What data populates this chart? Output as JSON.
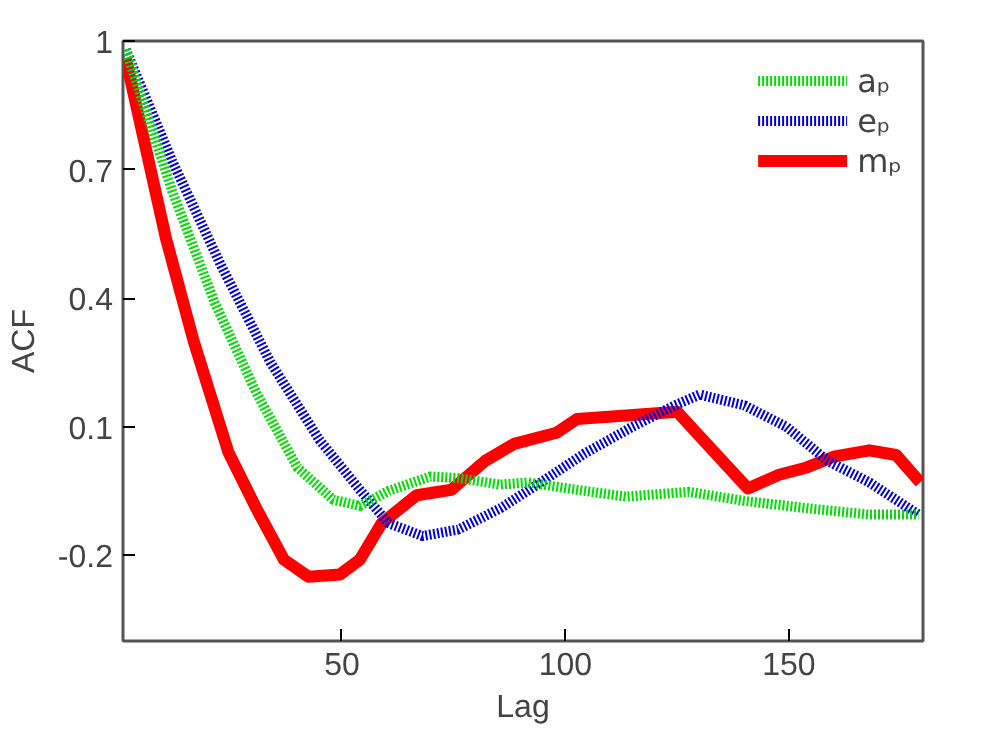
{
  "chart_data": {
    "type": "line",
    "xlabel": "Lag",
    "ylabel": "ACF",
    "xlim": [
      1,
      180
    ],
    "ylim": [
      -0.4,
      1
    ],
    "xticks": [
      50,
      100,
      150
    ],
    "yticks": [
      {
        "value": 1,
        "label": "1"
      },
      0.7,
      0.4,
      0.1,
      -0.2
    ],
    "grid": false,
    "legend": "top right",
    "marker": "none",
    "series": [
      {
        "name": "aₚ",
        "color": "#00e000",
        "line_style": "dotted",
        "x": [
          1.6,
          12,
          21.5,
          30.8,
          40,
          48,
          54,
          60.4,
          69.8,
          76,
          85.4,
          91.7,
          101,
          113.5,
          127.6,
          140,
          155.6,
          168,
          179
        ],
        "values": [
          0.98,
          0.65,
          0.39,
          0.18,
          0.005,
          -0.07,
          -0.085,
          -0.05,
          -0.016,
          -0.02,
          -0.035,
          -0.03,
          -0.045,
          -0.063,
          -0.052,
          -0.073,
          -0.092,
          -0.105,
          -0.105
        ]
      },
      {
        "name": "eₚ",
        "color": "#0000e0",
        "line_style": "dotted",
        "x": [
          1.6,
          12,
          23,
          34,
          44.9,
          54.2,
          60.4,
          68,
          76,
          85.5,
          94.9,
          104.2,
          115,
          124.5,
          130,
          140,
          149.4,
          158.7,
          168,
          179
        ],
        "values": [
          0.98,
          0.72,
          0.475,
          0.25,
          0.07,
          -0.05,
          -0.125,
          -0.155,
          -0.14,
          -0.09,
          -0.027,
          0.037,
          0.1,
          0.15,
          0.175,
          0.15,
          0.1,
          0.02,
          -0.03,
          -0.105
        ]
      },
      {
        "name": "mₚ",
        "color": "#ff0000",
        "line_style": "solid",
        "x": [
          1.6,
          10.6,
          16.8,
          24.6,
          30.8,
          37,
          42.5,
          49.5,
          54,
          58.9,
          66.7,
          74.5,
          82,
          88.5,
          98,
          102.6,
          113.5,
          125,
          130.7,
          140.8,
          147.8,
          154,
          160,
          168,
          174,
          179.4
        ],
        "values": [
          0.96,
          0.54,
          0.3,
          0.04,
          -0.09,
          -0.21,
          -0.25,
          -0.245,
          -0.21,
          -0.125,
          -0.06,
          -0.047,
          0.02,
          0.06,
          0.086,
          0.118,
          0.126,
          0.135,
          0.07,
          -0.044,
          -0.012,
          0.005,
          0.03,
          0.045,
          0.034,
          -0.03
        ]
      }
    ]
  }
}
